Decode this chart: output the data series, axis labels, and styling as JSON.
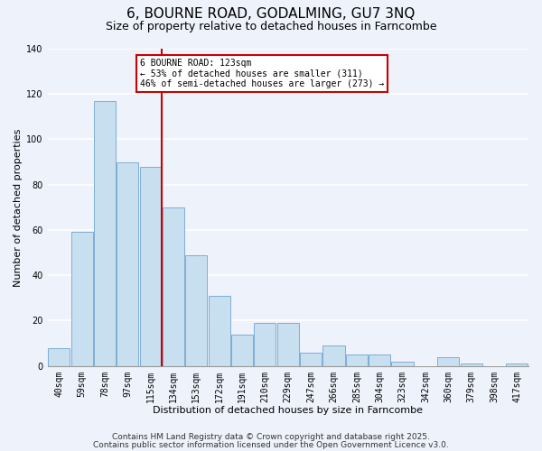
{
  "title": "6, BOURNE ROAD, GODALMING, GU7 3NQ",
  "subtitle": "Size of property relative to detached houses in Farncombe",
  "xlabel": "Distribution of detached houses by size in Farncombe",
  "ylabel": "Number of detached properties",
  "categories": [
    "40sqm",
    "59sqm",
    "78sqm",
    "97sqm",
    "115sqm",
    "134sqm",
    "153sqm",
    "172sqm",
    "191sqm",
    "210sqm",
    "229sqm",
    "247sqm",
    "266sqm",
    "285sqm",
    "304sqm",
    "323sqm",
    "342sqm",
    "360sqm",
    "379sqm",
    "398sqm",
    "417sqm"
  ],
  "values": [
    8,
    59,
    117,
    90,
    88,
    70,
    49,
    31,
    14,
    19,
    19,
    6,
    9,
    5,
    5,
    2,
    0,
    4,
    1,
    0,
    1
  ],
  "bar_color": "#c8dff0",
  "bar_edge_color": "#7eaed4",
  "vline_x_idx": 4.5,
  "vline_color": "#cc0000",
  "annotation_line1": "6 BOURNE ROAD: 123sqm",
  "annotation_line2": "← 53% of detached houses are smaller (311)",
  "annotation_line3": "46% of semi-detached houses are larger (273) →",
  "annotation_box_color": "#ffffff",
  "annotation_box_edge": "#cc0000",
  "ylim": [
    0,
    140
  ],
  "yticks": [
    0,
    20,
    40,
    60,
    80,
    100,
    120,
    140
  ],
  "footer1": "Contains HM Land Registry data © Crown copyright and database right 2025.",
  "footer2": "Contains public sector information licensed under the Open Government Licence v3.0.",
  "background_color": "#eef2fb",
  "grid_color": "#ffffff",
  "title_fontsize": 11,
  "subtitle_fontsize": 9,
  "xlabel_fontsize": 8,
  "ylabel_fontsize": 8,
  "tick_fontsize": 7,
  "footer_fontsize": 6.5,
  "annot_fontsize": 7
}
